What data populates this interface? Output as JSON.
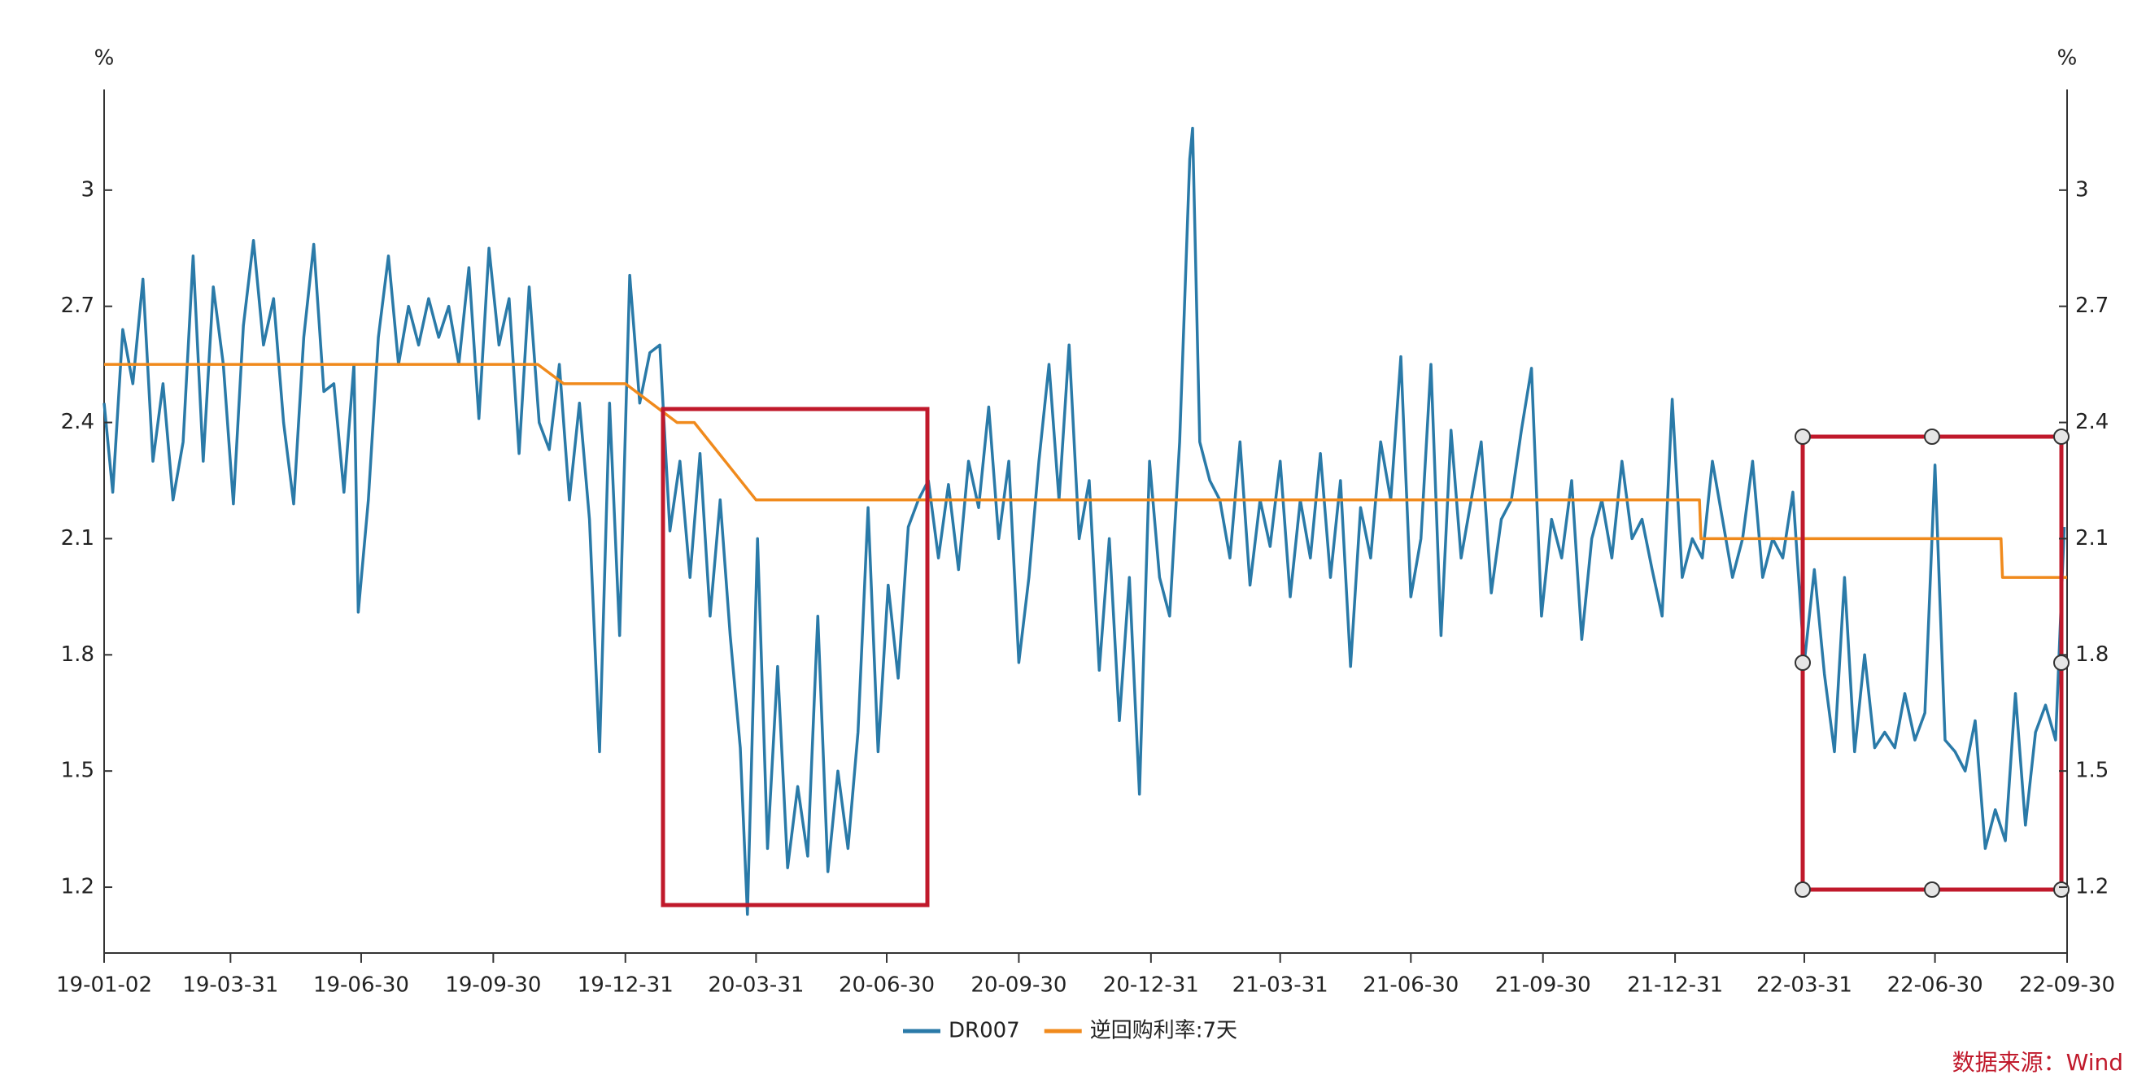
{
  "chart_data": {
    "type": "line",
    "y_label": "%",
    "y2_label": "%",
    "source": "数据来源：Wind",
    "xlim": [
      "19-01-02",
      "22-09-30"
    ],
    "xticks": [
      "19-01-02",
      "19-03-31",
      "19-06-30",
      "19-09-30",
      "19-12-31",
      "20-03-31",
      "20-06-30",
      "20-09-30",
      "20-12-31",
      "21-03-31",
      "21-06-30",
      "21-09-30",
      "21-12-31",
      "22-03-31",
      "22-06-30",
      "22-09-30"
    ],
    "ylim": [
      1.03,
      3.26
    ],
    "yticks": [
      1.2,
      1.5,
      1.8,
      2.1,
      2.4,
      2.7,
      3
    ],
    "y2lim": [
      1.03,
      3.26
    ],
    "y2ticks": [
      1.2,
      1.5,
      1.8,
      2.1,
      2.4,
      2.7,
      3
    ],
    "series": [
      {
        "name": "DR007",
        "color": "#2a7aa8",
        "x": [
          "19-01-02",
          "19-01-08",
          "19-01-15",
          "19-01-22",
          "19-01-29",
          "19-02-05",
          "19-02-12",
          "19-02-19",
          "19-02-26",
          "19-03-05",
          "19-03-12",
          "19-03-19",
          "19-03-26",
          "19-04-02",
          "19-04-09",
          "19-04-16",
          "19-04-23",
          "19-04-30",
          "19-05-07",
          "19-05-14",
          "19-05-21",
          "19-05-28",
          "19-06-04",
          "19-06-11",
          "19-06-18",
          "19-06-25",
          "19-06-28",
          "19-07-05",
          "19-07-12",
          "19-07-19",
          "19-07-26",
          "19-08-02",
          "19-08-09",
          "19-08-16",
          "19-08-23",
          "19-08-30",
          "19-09-06",
          "19-09-13",
          "19-09-20",
          "19-09-27",
          "19-10-04",
          "19-10-11",
          "19-10-18",
          "19-10-25",
          "19-11-01",
          "19-11-08",
          "19-11-15",
          "19-11-22",
          "19-11-29",
          "19-12-06",
          "19-12-13",
          "19-12-20",
          "19-12-27",
          "20-01-03",
          "20-01-10",
          "20-01-17",
          "20-01-24",
          "20-01-31",
          "20-02-07",
          "20-02-14",
          "20-02-21",
          "20-02-28",
          "20-03-06",
          "20-03-13",
          "20-03-20",
          "20-03-25",
          "20-04-01",
          "20-04-08",
          "20-04-15",
          "20-04-22",
          "20-04-29",
          "20-05-06",
          "20-05-13",
          "20-05-20",
          "20-05-27",
          "20-06-03",
          "20-06-10",
          "20-06-17",
          "20-06-24",
          "20-07-01",
          "20-07-08",
          "20-07-15",
          "20-07-22",
          "20-07-29",
          "20-08-05",
          "20-08-12",
          "20-08-19",
          "20-08-26",
          "20-09-02",
          "20-09-09",
          "20-09-16",
          "20-09-23",
          "20-09-30",
          "20-10-07",
          "20-10-14",
          "20-10-21",
          "20-10-28",
          "20-11-04",
          "20-11-11",
          "20-11-18",
          "20-11-25",
          "20-12-02",
          "20-12-09",
          "20-12-16",
          "20-12-23",
          "20-12-30",
          "21-01-06",
          "21-01-13",
          "21-01-20",
          "21-01-27",
          "21-01-29",
          "21-02-03",
          "21-02-10",
          "21-02-17",
          "21-02-24",
          "21-03-03",
          "21-03-10",
          "21-03-17",
          "21-03-24",
          "21-03-31",
          "21-04-07",
          "21-04-14",
          "21-04-21",
          "21-04-28",
          "21-05-05",
          "21-05-12",
          "21-05-19",
          "21-05-26",
          "21-06-02",
          "21-06-09",
          "21-06-16",
          "21-06-23",
          "21-06-30",
          "21-07-07",
          "21-07-14",
          "21-07-21",
          "21-07-28",
          "21-08-04",
          "21-08-11",
          "21-08-18",
          "21-08-25",
          "21-09-01",
          "21-09-08",
          "21-09-15",
          "21-09-22",
          "21-09-29",
          "21-10-06",
          "21-10-13",
          "21-10-20",
          "21-10-27",
          "21-11-03",
          "21-11-10",
          "21-11-17",
          "21-11-24",
          "21-12-01",
          "21-12-08",
          "21-12-15",
          "21-12-22",
          "21-12-29",
          "22-01-05",
          "22-01-12",
          "22-01-19",
          "22-01-26",
          "22-02-02",
          "22-02-09",
          "22-02-16",
          "22-02-23",
          "22-03-02",
          "22-03-09",
          "22-03-16",
          "22-03-23",
          "22-03-31",
          "22-04-07",
          "22-04-14",
          "22-04-21",
          "22-04-28",
          "22-05-05",
          "22-05-12",
          "22-05-19",
          "22-05-26",
          "22-06-02",
          "22-06-09",
          "22-06-16",
          "22-06-23",
          "22-06-30",
          "22-07-07",
          "22-07-14",
          "22-07-21",
          "22-07-28",
          "22-08-04",
          "22-08-11",
          "22-08-18",
          "22-08-25",
          "22-09-01",
          "22-09-08",
          "22-09-15",
          "22-09-22",
          "22-09-28"
        ],
        "values": [
          2.45,
          2.22,
          2.64,
          2.5,
          2.77,
          2.3,
          2.5,
          2.2,
          2.35,
          2.83,
          2.3,
          2.75,
          2.55,
          2.19,
          2.65,
          2.87,
          2.6,
          2.72,
          2.4,
          2.19,
          2.62,
          2.86,
          2.48,
          2.5,
          2.22,
          2.55,
          1.91,
          2.2,
          2.62,
          2.83,
          2.55,
          2.7,
          2.6,
          2.72,
          2.62,
          2.7,
          2.55,
          2.8,
          2.41,
          2.85,
          2.6,
          2.72,
          2.32,
          2.75,
          2.4,
          2.33,
          2.55,
          2.2,
          2.45,
          2.15,
          1.55,
          2.45,
          1.85,
          2.78,
          2.45,
          2.58,
          2.6,
          2.12,
          2.3,
          2.0,
          2.32,
          1.9,
          2.2,
          1.85,
          1.56,
          1.13,
          2.1,
          1.3,
          1.77,
          1.25,
          1.46,
          1.28,
          1.9,
          1.24,
          1.5,
          1.3,
          1.6,
          2.18,
          1.55,
          1.98,
          1.74,
          2.13,
          2.2,
          2.25,
          2.05,
          2.24,
          2.02,
          2.3,
          2.18,
          2.44,
          2.1,
          2.3,
          1.78,
          2.0,
          2.3,
          2.55,
          2.2,
          2.6,
          2.1,
          2.25,
          1.76,
          2.1,
          1.63,
          2.0,
          1.44,
          2.3,
          2.0,
          1.9,
          2.35,
          3.08,
          3.16,
          2.35,
          2.25,
          2.2,
          2.05,
          2.35,
          1.98,
          2.2,
          2.08,
          2.3,
          1.95,
          2.2,
          2.05,
          2.32,
          2.0,
          2.25,
          1.77,
          2.18,
          2.05,
          2.35,
          2.2,
          2.57,
          1.95,
          2.1,
          2.55,
          1.85,
          2.38,
          2.05,
          2.2,
          2.35,
          1.96,
          2.15,
          2.2,
          2.38,
          2.54,
          1.9,
          2.15,
          2.05,
          2.25,
          1.84,
          2.1,
          2.2,
          2.05,
          2.3,
          2.1,
          2.15,
          2.02,
          1.9,
          2.46,
          2.0,
          2.1,
          2.05,
          2.3,
          2.15,
          2.0,
          2.1,
          2.3,
          2.0,
          2.1,
          2.05,
          2.22,
          1.78,
          2.02,
          1.75,
          1.55,
          2.0,
          1.55,
          1.8,
          1.56,
          1.6,
          1.56,
          1.7,
          1.58,
          1.65,
          2.29,
          1.58,
          1.55,
          1.5,
          1.63,
          1.3,
          1.4,
          1.32,
          1.7,
          1.36,
          1.6,
          1.67,
          1.58,
          2.13
        ]
      },
      {
        "name": "逆回购利率:7天",
        "color": "#f08a1c",
        "x": [
          "19-01-02",
          "19-10-31",
          "19-11-18",
          "19-12-31",
          "20-02-05",
          "20-02-17",
          "20-03-31",
          "22-01-17",
          "22-01-18",
          "22-08-15",
          "22-08-16",
          "22-09-30"
        ],
        "values": [
          2.55,
          2.55,
          2.5,
          2.5,
          2.4,
          2.4,
          2.2,
          2.2,
          2.1,
          2.1,
          2.0,
          2.0
        ]
      }
    ]
  }
}
